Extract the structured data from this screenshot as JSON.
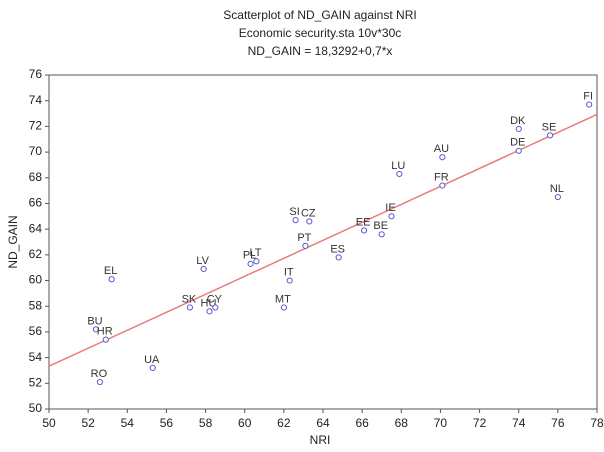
{
  "chart_data": {
    "type": "scatter",
    "title": "Scatterplot of ND_GAIN against NRI",
    "subtitle": "Economic security.sta 10v*30c",
    "equation": "ND_GAIN = 18,3292+0,7*x",
    "x_label": "NRI",
    "y_label": "ND_GAIN",
    "labels": [
      "FI",
      "DK",
      "SE",
      "DE",
      "AU",
      "LU",
      "FR",
      "NL",
      "IE",
      "EE",
      "BE",
      "SI",
      "CZ",
      "PT",
      "ES",
      "PL",
      "LT",
      "LV",
      "IT",
      "EL",
      "SK",
      "HU",
      "CY",
      "MT",
      "BU",
      "HR",
      "UA",
      "RO"
    ],
    "x": [
      77.6,
      74.0,
      75.6,
      74.0,
      70.1,
      67.9,
      70.1,
      76.0,
      67.5,
      66.1,
      67.0,
      62.6,
      63.3,
      63.1,
      64.8,
      60.3,
      60.6,
      57.9,
      62.3,
      53.2,
      57.2,
      58.2,
      58.5,
      62.0,
      52.4,
      52.9,
      55.3,
      52.6
    ],
    "values": [
      73.7,
      71.8,
      71.3,
      70.1,
      69.6,
      68.3,
      67.4,
      66.5,
      65.0,
      63.9,
      63.6,
      64.7,
      64.6,
      62.7,
      61.8,
      61.3,
      61.5,
      60.9,
      60.0,
      60.1,
      57.9,
      57.6,
      57.9,
      57.9,
      56.2,
      55.4,
      53.2,
      52.1
    ],
    "color": "#5a5ad0",
    "trend": {
      "intercept": 18.3292,
      "slope": 0.7,
      "color": "#e87d7d"
    },
    "xlim": [
      50,
      78
    ],
    "xticks": [
      50,
      52,
      54,
      56,
      58,
      60,
      62,
      64,
      66,
      68,
      70,
      72,
      74,
      76,
      78
    ],
    "ylim": [
      50,
      76
    ],
    "yticks": [
      50,
      52,
      54,
      56,
      58,
      60,
      62,
      64,
      66,
      68,
      70,
      72,
      74,
      76
    ],
    "grid": false
  }
}
